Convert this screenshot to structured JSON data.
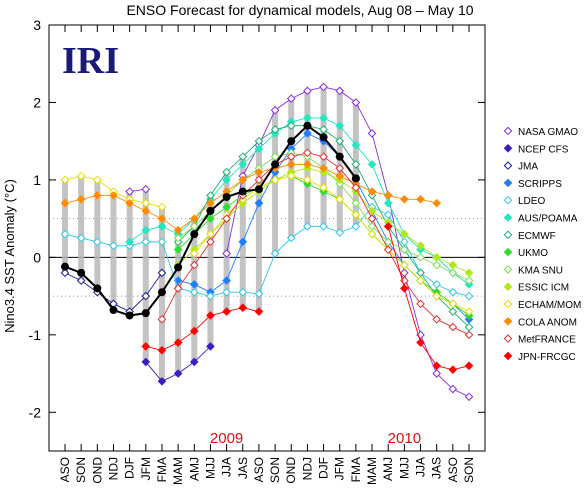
{
  "chart_data": {
    "type": "line",
    "title": "ENSO Forecast for dynamical models, Aug 08 – May 10",
    "logo": "IRI",
    "ylabel": "Nino3.4 SST Anomaly (°C)",
    "xlabel": "",
    "ylim": [
      -2.5,
      3
    ],
    "yticks": [
      "-2",
      "-1",
      "0",
      "1",
      "2",
      "3"
    ],
    "grid": false,
    "reference_lines": [
      0.5,
      -0.5
    ],
    "year_labels": [
      {
        "text": "2009",
        "at": "JJA"
      },
      {
        "text": "2010",
        "at": "MJJ"
      }
    ],
    "x": [
      "ASO",
      "SON",
      "OND",
      "NDJ",
      "DJF",
      "JFM",
      "FMA",
      "MAM",
      "AMJ",
      "MJJ",
      "JJA",
      "JAS",
      "ASO",
      "SON",
      "OND",
      "NDJ",
      "DJF",
      "JFM",
      "FMA",
      "MAM",
      "AMJ",
      "MJJ",
      "JJA",
      "JAS",
      "ASO",
      "SON"
    ],
    "legend_placement": "right",
    "series": [
      {
        "name": "NASA GMAO",
        "color": "#8a2be2",
        "marker": "diamond-open",
        "values": [
          null,
          null,
          null,
          null,
          0.85,
          0.88,
          null,
          null,
          null,
          null,
          0.05,
          1.05,
          1.45,
          1.9,
          2.05,
          2.15,
          2.2,
          2.15,
          2.0,
          1.6,
          0.8,
          -0.2,
          -1.0,
          -1.5,
          -1.7,
          -1.8
        ]
      },
      {
        "name": "NCEP CFS",
        "color": "#3a1fc0",
        "marker": "diamond",
        "values": [
          null,
          null,
          null,
          null,
          null,
          -1.35,
          -1.6,
          -1.5,
          -1.35,
          -1.15,
          null,
          null,
          null,
          null,
          null,
          null,
          null,
          null,
          null,
          null,
          null,
          null,
          null,
          null,
          null,
          null
        ]
      },
      {
        "name": "JMA",
        "color": "#1a1aa0",
        "marker": "diamond-open",
        "values": [
          -0.2,
          -0.3,
          -0.45,
          -0.6,
          -0.7,
          -0.5,
          -0.2,
          null,
          null,
          null,
          null,
          null,
          null,
          null,
          null,
          null,
          null,
          null,
          null,
          null,
          null,
          null,
          null,
          null,
          null,
          null
        ]
      },
      {
        "name": "SCRIPPS",
        "color": "#1e7fff",
        "marker": "diamond",
        "values": [
          null,
          null,
          null,
          null,
          null,
          null,
          null,
          -0.3,
          -0.35,
          -0.45,
          -0.3,
          0.2,
          0.7,
          1.1,
          1.4,
          1.6,
          1.5,
          1.3,
          1.0,
          0.6,
          0.2,
          -0.1,
          -0.3,
          -0.5,
          -0.6,
          -0.8
        ]
      },
      {
        "name": "LDEO",
        "color": "#30c8e8",
        "marker": "diamond-open",
        "values": [
          0.3,
          0.25,
          0.2,
          0.15,
          0.15,
          0.2,
          0.2,
          -0.4,
          -0.45,
          -0.5,
          -0.45,
          -0.45,
          -0.47,
          0.05,
          0.25,
          0.4,
          0.4,
          0.32,
          0.4,
          0.65,
          0.55,
          0.2,
          -0.2,
          -0.35,
          -0.45,
          -0.5
        ]
      },
      {
        "name": "AUS/POAMA",
        "color": "#20e8c0",
        "marker": "diamond",
        "values": [
          null,
          null,
          null,
          null,
          0.2,
          0.35,
          0.4,
          0.3,
          0.5,
          0.75,
          1.0,
          1.2,
          1.4,
          1.6,
          1.75,
          1.8,
          1.8,
          1.7,
          1.45,
          1.2,
          0.7,
          0.3,
          0.1,
          0.0,
          -0.2,
          -0.35
        ]
      },
      {
        "name": "ECMWF",
        "color": "#18b070",
        "marker": "diamond-open",
        "values": [
          null,
          null,
          null,
          null,
          null,
          null,
          null,
          0.2,
          0.4,
          0.8,
          1.1,
          1.3,
          1.5,
          1.65,
          1.7,
          1.7,
          1.65,
          1.5,
          1.2,
          0.8,
          0.4,
          0.1,
          -0.2,
          -0.5,
          -0.7,
          -0.9
        ]
      },
      {
        "name": "UKMO",
        "color": "#30dc30",
        "marker": "diamond",
        "values": [
          null,
          null,
          null,
          null,
          null,
          null,
          null,
          0.1,
          0.3,
          0.5,
          0.65,
          0.8,
          0.9,
          1.0,
          1.05,
          0.95,
          0.85,
          0.75,
          0.55,
          0.3,
          0.1,
          -0.1,
          -0.3,
          -0.45,
          -0.6,
          -0.75
        ]
      },
      {
        "name": "KMA SNU",
        "color": "#78e050",
        "marker": "diamond-open",
        "values": [
          null,
          null,
          null,
          null,
          null,
          null,
          null,
          0.25,
          0.4,
          0.6,
          0.8,
          1.0,
          1.15,
          1.3,
          1.35,
          1.3,
          1.15,
          0.95,
          0.7,
          0.4,
          0.2,
          0.1,
          0.0,
          -0.1,
          -0.2,
          -0.3
        ]
      },
      {
        "name": "ESSIC ICM",
        "color": "#b0e818",
        "marker": "diamond",
        "values": [
          null,
          null,
          null,
          null,
          null,
          null,
          null,
          -0.1,
          0.1,
          0.3,
          0.5,
          0.7,
          0.85,
          1.0,
          1.1,
          1.15,
          1.1,
          1.0,
          0.85,
          0.6,
          0.45,
          0.3,
          0.15,
          0.0,
          -0.1,
          -0.2
        ]
      },
      {
        "name": "ECHAM/MOM",
        "color": "#e8e000",
        "marker": "diamond-open",
        "values": [
          1.0,
          1.05,
          1.0,
          0.85,
          0.75,
          0.7,
          0.65,
          null,
          0.05,
          0.3,
          0.55,
          0.75,
          0.9,
          1.0,
          1.05,
          1.0,
          0.9,
          0.75,
          0.55,
          0.3,
          0.1,
          -0.1,
          -0.3,
          -0.5,
          -0.6,
          -0.7
        ]
      },
      {
        "name": "COLA ANOM",
        "color": "#ff8c00",
        "marker": "diamond",
        "values": [
          0.7,
          0.75,
          0.8,
          0.8,
          0.7,
          0.6,
          0.5,
          0.35,
          0.5,
          0.7,
          0.85,
          1.0,
          1.1,
          1.15,
          1.2,
          1.2,
          1.15,
          1.05,
          0.95,
          0.85,
          0.8,
          0.75,
          0.75,
          0.7,
          null,
          null
        ]
      },
      {
        "name": "MetFRANCE",
        "color": "#e83030",
        "marker": "diamond-open",
        "values": [
          null,
          null,
          null,
          null,
          null,
          null,
          -0.8,
          -0.4,
          -0.1,
          0.2,
          0.5,
          0.8,
          1.0,
          1.2,
          1.3,
          1.35,
          1.3,
          1.15,
          0.9,
          0.5,
          0.1,
          -0.3,
          -0.6,
          -0.8,
          -0.9,
          -1.0
        ]
      },
      {
        "name": "JPN-FRCGC",
        "color": "#ff0000",
        "marker": "diamond",
        "values": [
          null,
          null,
          null,
          null,
          null,
          -1.15,
          -1.2,
          -1.1,
          -0.95,
          -0.75,
          -0.7,
          -0.65,
          -0.7,
          null,
          null,
          null,
          null,
          null,
          null,
          null,
          0.4,
          -0.4,
          -1.1,
          -1.4,
          -1.45,
          -1.4
        ]
      }
    ],
    "mean": {
      "color": "#000000",
      "values": [
        -0.12,
        -0.2,
        -0.4,
        -0.68,
        -0.75,
        -0.72,
        -0.45,
        -0.13,
        0.3,
        0.6,
        0.78,
        0.85,
        0.88,
        1.2,
        1.5,
        1.7,
        1.55,
        1.3,
        1.02,
        null,
        null,
        null,
        null,
        null,
        null,
        null
      ]
    }
  }
}
